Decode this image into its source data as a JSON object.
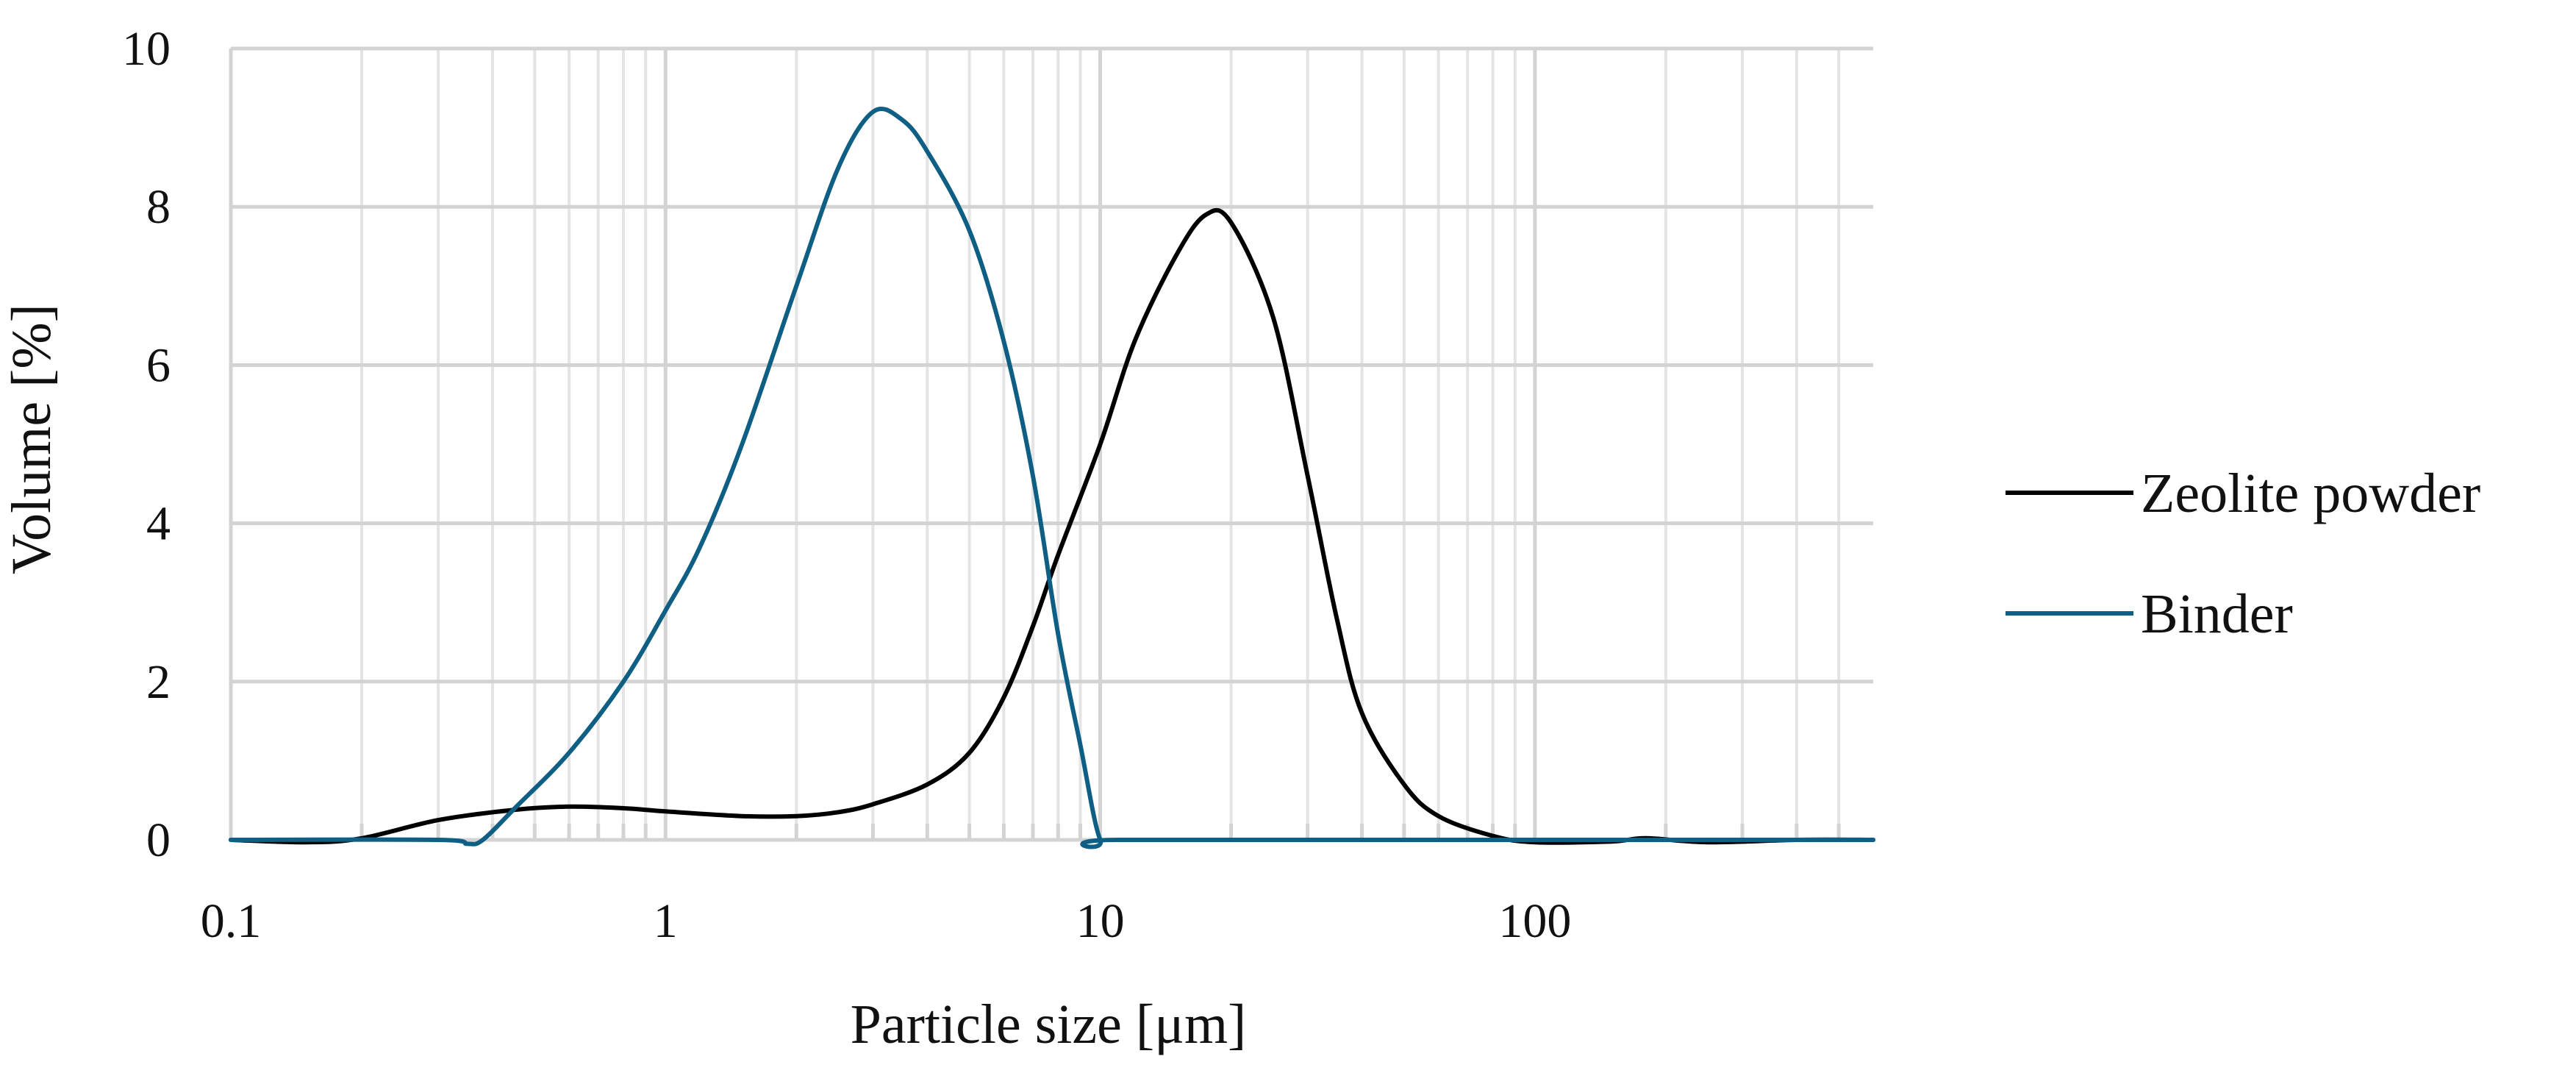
{
  "chart_data": {
    "type": "line",
    "title": "",
    "xlabel": "Particle size [μm]",
    "ylabel": "Volume [%]",
    "x_scale": "log",
    "xlim": [
      0.1,
      600
    ],
    "ylim": [
      0,
      10
    ],
    "x_ticks": [
      "0.1",
      "1",
      "10",
      "100"
    ],
    "y_ticks": [
      "0",
      "2",
      "4",
      "6",
      "8",
      "10"
    ],
    "grid": true,
    "legend_position": "right",
    "series": [
      {
        "name": "Zeolite powder",
        "color": "#000000",
        "points": [
          [
            0.1,
            0.0
          ],
          [
            0.15,
            -0.03
          ],
          [
            0.2,
            0.02
          ],
          [
            0.3,
            0.25
          ],
          [
            0.45,
            0.38
          ],
          [
            0.6,
            0.42
          ],
          [
            0.8,
            0.4
          ],
          [
            1.0,
            0.36
          ],
          [
            1.5,
            0.3
          ],
          [
            2.0,
            0.3
          ],
          [
            2.5,
            0.35
          ],
          [
            3.0,
            0.45
          ],
          [
            4.0,
            0.7
          ],
          [
            5.0,
            1.1
          ],
          [
            6.0,
            1.8
          ],
          [
            7.0,
            2.7
          ],
          [
            8.0,
            3.6
          ],
          [
            10.0,
            5.0
          ],
          [
            12.0,
            6.3
          ],
          [
            15.0,
            7.4
          ],
          [
            17.5,
            7.9
          ],
          [
            20.0,
            7.8
          ],
          [
            25.0,
            6.6
          ],
          [
            30.0,
            4.6
          ],
          [
            35.0,
            2.8
          ],
          [
            40.0,
            1.6
          ],
          [
            50.0,
            0.7
          ],
          [
            60.0,
            0.3
          ],
          [
            80.0,
            0.05
          ],
          [
            100.0,
            -0.03
          ],
          [
            150.0,
            -0.02
          ],
          [
            180.0,
            0.02
          ],
          [
            250.0,
            -0.03
          ],
          [
            400.0,
            0.0
          ],
          [
            600.0,
            0.0
          ]
        ]
      },
      {
        "name": "Binder",
        "color": "#0e5f83",
        "points": [
          [
            0.1,
            0.0
          ],
          [
            0.3,
            0.0
          ],
          [
            0.35,
            -0.05
          ],
          [
            0.38,
            0.0
          ],
          [
            0.45,
            0.4
          ],
          [
            0.6,
            1.1
          ],
          [
            0.8,
            2.0
          ],
          [
            1.0,
            2.9
          ],
          [
            1.2,
            3.7
          ],
          [
            1.5,
            5.0
          ],
          [
            2.0,
            7.0
          ],
          [
            2.5,
            8.5
          ],
          [
            3.0,
            9.2
          ],
          [
            3.5,
            9.1
          ],
          [
            4.0,
            8.7
          ],
          [
            5.0,
            7.7
          ],
          [
            6.0,
            6.3
          ],
          [
            7.0,
            4.6
          ],
          [
            8.0,
            2.6
          ],
          [
            9.0,
            1.2
          ],
          [
            10.0,
            0.0
          ],
          [
            11.0,
            0.0
          ],
          [
            100.0,
            0.0
          ],
          [
            600.0,
            0.0
          ]
        ]
      }
    ]
  }
}
